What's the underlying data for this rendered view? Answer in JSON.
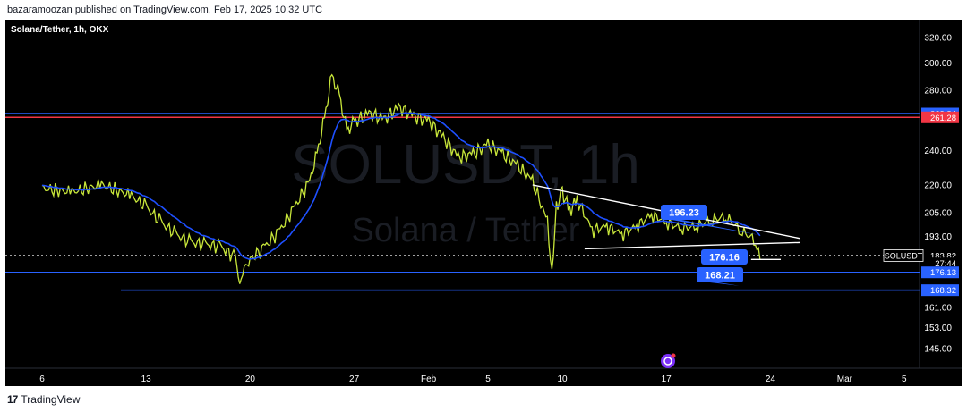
{
  "header": {
    "published": "bazaramoozan published on TradingView.com, Feb 17, 2025 10:32 UTC"
  },
  "footer": {
    "brand": "TradingView",
    "logo_icon": "tradingview-logo-icon"
  },
  "chart": {
    "title": "Solana/Tether, 1h, OKX",
    "watermark_symbol": "SOLUSDT, 1h",
    "watermark_name": "Solana / Tether"
  },
  "colors": {
    "background": "#000000",
    "price_blue": "#2962ff",
    "price_red": "#f23645",
    "candle": "#c8e63a",
    "ema": "#1e50ff",
    "trendline": "#ffffff"
  },
  "chart_data": {
    "type": "line",
    "title": "Solana/Tether, 1h, OKX",
    "xlabel": "",
    "ylabel": "",
    "x_ticks": [
      "6",
      "13",
      "20",
      "27",
      "Feb",
      "5",
      "10",
      "17",
      "24",
      "Mar",
      "5"
    ],
    "y_ticks": [
      320,
      300,
      280,
      240,
      220,
      205,
      193,
      161,
      153,
      145
    ],
    "yscale": "log",
    "ylim": [
      138,
      335
    ],
    "series": [
      {
        "name": "",
        "points": [
          [
            0,
            218
          ],
          [
            2,
            216
          ],
          [
            4,
            220
          ],
          [
            6,
            214
          ],
          [
            7,
            208
          ],
          [
            8,
            200
          ],
          [
            9,
            194
          ],
          [
            10,
            190
          ],
          [
            11,
            189
          ],
          [
            12,
            188
          ],
          [
            13,
            183
          ],
          [
            13.3,
            170
          ],
          [
            13.6,
            178
          ],
          [
            14,
            182
          ],
          [
            15,
            188
          ],
          [
            16,
            196
          ],
          [
            17,
            208
          ],
          [
            18,
            222
          ],
          [
            18.5,
            238
          ],
          [
            19,
            260
          ],
          [
            19.5,
            290
          ],
          [
            20,
            276
          ],
          [
            20.5,
            252
          ],
          [
            21,
            258
          ],
          [
            22,
            264
          ],
          [
            23,
            260
          ],
          [
            24,
            268
          ],
          [
            25,
            262
          ],
          [
            26,
            259
          ],
          [
            27,
            248
          ],
          [
            28,
            236
          ],
          [
            29,
            238
          ],
          [
            30,
            244
          ],
          [
            31,
            238
          ],
          [
            32,
            231
          ],
          [
            33,
            222
          ],
          [
            34,
            200
          ],
          [
            34.3,
            175
          ],
          [
            34.6,
            208
          ],
          [
            35,
            216
          ],
          [
            35.5,
            206
          ],
          [
            36,
            212
          ],
          [
            37,
            196
          ],
          [
            38,
            198
          ],
          [
            39,
            194
          ],
          [
            40,
            198
          ],
          [
            41,
            204
          ],
          [
            42,
            200
          ],
          [
            43,
            197
          ],
          [
            44,
            198
          ],
          [
            45,
            201
          ],
          [
            46,
            203
          ],
          [
            47,
            196
          ],
          [
            48,
            191
          ],
          [
            48.3,
            182
          ]
        ]
      }
    ],
    "horizontal_levels": [
      {
        "value": 263.84,
        "color": "#2962ff"
      },
      {
        "value": 261.28,
        "color": "#f23645"
      },
      {
        "value": 176.13,
        "color": "#2962ff"
      },
      {
        "value": 168.32,
        "color": "#2962ff"
      }
    ],
    "axis_labels": [
      {
        "text": "263.84",
        "value": 263.84,
        "color": "#2962ff"
      },
      {
        "text": "261.28",
        "value": 261.28,
        "color": "#f23645"
      },
      {
        "text": "183.82",
        "value": 183.82,
        "color": "#ffffff"
      },
      {
        "text": "27:44",
        "value": 180.2,
        "color": "#ffffff"
      },
      {
        "text": "176.13",
        "value": 176.13,
        "color": "#2962ff"
      },
      {
        "text": "168.32",
        "value": 168.32,
        "color": "#2962ff"
      }
    ],
    "symbol_label": "SOLUSDT",
    "last_price": 183.82,
    "annotations": [
      {
        "text": "196.23",
        "value": 196.23
      },
      {
        "text": "176.16",
        "value": 176.16
      },
      {
        "text": "168.21",
        "value": 168.21
      }
    ],
    "trendlines": [
      {
        "from": [
          33,
          220
        ],
        "to": [
          51,
          192
        ]
      },
      {
        "from": [
          36.5,
          187
        ],
        "to": [
          51,
          190
        ]
      },
      {
        "from": [
          47.7,
          182
        ],
        "to": [
          49.7,
          182
        ]
      }
    ]
  }
}
